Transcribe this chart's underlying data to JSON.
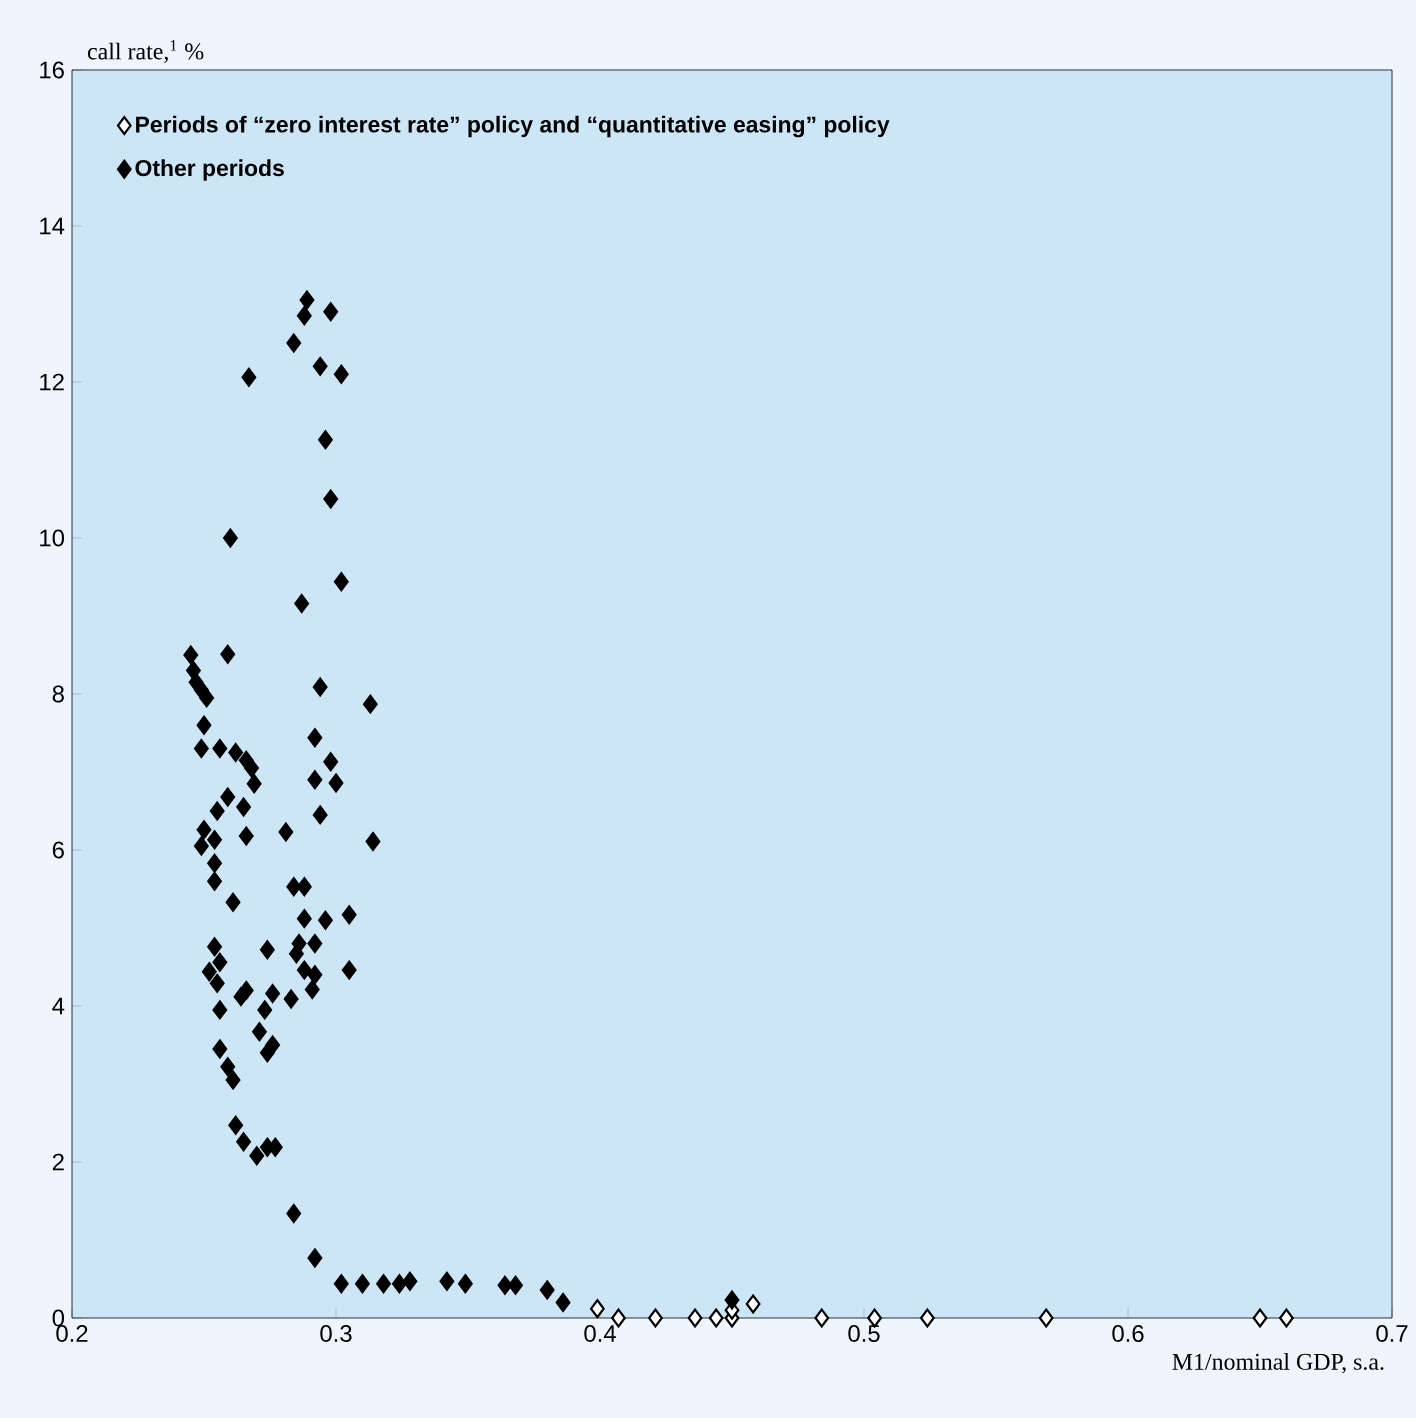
{
  "chart_data": {
    "type": "scatter",
    "xlabel": "M1/nominal GDP, s.a.",
    "ylabel": "call rate,$^{1}$ %",
    "xlim": [
      0.2,
      0.7
    ],
    "ylim": [
      0,
      16
    ],
    "xticks": [
      0.2,
      0.3,
      0.4,
      0.5,
      0.6,
      0.7
    ],
    "yticks": [
      0,
      2,
      4,
      6,
      8,
      10,
      12,
      14,
      16
    ],
    "grid": false,
    "legend": "top left",
    "marker": "diamond",
    "series": [
      {
        "name": "Periods of  “zero interest rate” policy and “quantitative easing” policy",
        "color": "#ffffff",
        "x": [
          0.399,
          0.407,
          0.421,
          0.436,
          0.444,
          0.45,
          0.45,
          0.458,
          0.484,
          0.504,
          0.524,
          0.569,
          0.65,
          0.66
        ],
        "values": [
          0.12,
          0,
          0,
          0,
          0,
          0,
          0.1,
          0.18,
          0,
          0,
          0,
          0,
          0,
          0
        ]
      },
      {
        "name": "Other periods",
        "color": "#000000",
        "x": [
          0.289,
          0.288,
          0.298,
          0.284,
          0.294,
          0.302,
          0.267,
          0.296,
          0.298,
          0.26,
          0.302,
          0.287,
          0.259,
          0.294,
          0.313,
          0.245,
          0.246,
          0.247,
          0.249,
          0.251,
          0.25,
          0.292,
          0.249,
          0.256,
          0.262,
          0.266,
          0.268,
          0.298,
          0.3,
          0.292,
          0.269,
          0.259,
          0.255,
          0.265,
          0.294,
          0.25,
          0.254,
          0.249,
          0.266,
          0.281,
          0.314,
          0.254,
          0.254,
          0.261,
          0.284,
          0.288,
          0.288,
          0.296,
          0.305,
          0.254,
          0.256,
          0.252,
          0.255,
          0.274,
          0.286,
          0.292,
          0.285,
          0.305,
          0.288,
          0.292,
          0.291,
          0.264,
          0.266,
          0.276,
          0.283,
          0.273,
          0.256,
          0.271,
          0.276,
          0.274,
          0.256,
          0.259,
          0.261,
          0.262,
          0.265,
          0.27,
          0.274,
          0.277,
          0.284,
          0.292,
          0.302,
          0.31,
          0.318,
          0.324,
          0.328,
          0.342,
          0.349,
          0.364,
          0.368,
          0.38,
          0.386,
          0.45
        ],
        "values": [
          13.05,
          12.85,
          12.9,
          12.5,
          12.2,
          12.1,
          12.06,
          11.26,
          10.5,
          10.0,
          9.44,
          9.16,
          8.51,
          8.09,
          7.87,
          8.5,
          8.3,
          8.15,
          8.05,
          7.95,
          7.6,
          7.44,
          7.3,
          7.3,
          7.25,
          7.15,
          7.05,
          7.13,
          6.86,
          6.9,
          6.85,
          6.68,
          6.5,
          6.55,
          6.45,
          6.26,
          6.13,
          6.05,
          6.18,
          6.23,
          6.11,
          5.83,
          5.6,
          5.33,
          5.53,
          5.53,
          5.12,
          5.1,
          5.17,
          4.76,
          4.56,
          4.44,
          4.29,
          4.72,
          4.8,
          4.8,
          4.67,
          4.46,
          4.46,
          4.4,
          4.21,
          4.12,
          4.2,
          4.16,
          4.09,
          3.95,
          3.95,
          3.67,
          3.5,
          3.4,
          3.45,
          3.22,
          3.05,
          2.47,
          2.26,
          2.08,
          2.19,
          2.19,
          1.34,
          0.77,
          0.44,
          0.44,
          0.44,
          0.44,
          0.47,
          0.47,
          0.44,
          0.42,
          0.42,
          0.36,
          0.2,
          0.23
        ]
      }
    ]
  }
}
